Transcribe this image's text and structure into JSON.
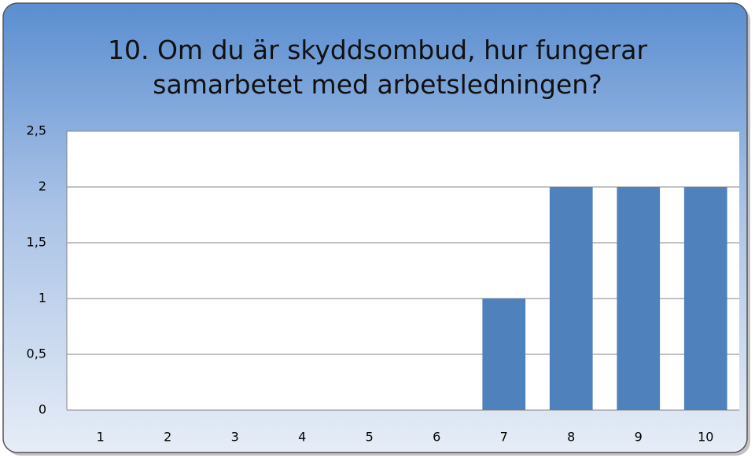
{
  "chart_data": {
    "type": "bar",
    "title": "10. Om du är skyddsombud, hur fungerar samarbetet med arbetsledningen?",
    "categories": [
      "1",
      "2",
      "3",
      "4",
      "5",
      "6",
      "7",
      "8",
      "9",
      "10"
    ],
    "values": [
      0,
      0,
      0,
      0,
      0,
      0,
      1,
      2,
      2,
      2
    ],
    "color": "#4f81bd",
    "ylim": [
      0,
      2.5
    ],
    "yticks": [
      0,
      {
        "value": 0.5,
        "label": "0,5"
      },
      1,
      {
        "value": 1.5,
        "label": "1,5"
      },
      2,
      {
        "value": 2.5,
        "label": "2,5"
      }
    ],
    "grid": true
  }
}
